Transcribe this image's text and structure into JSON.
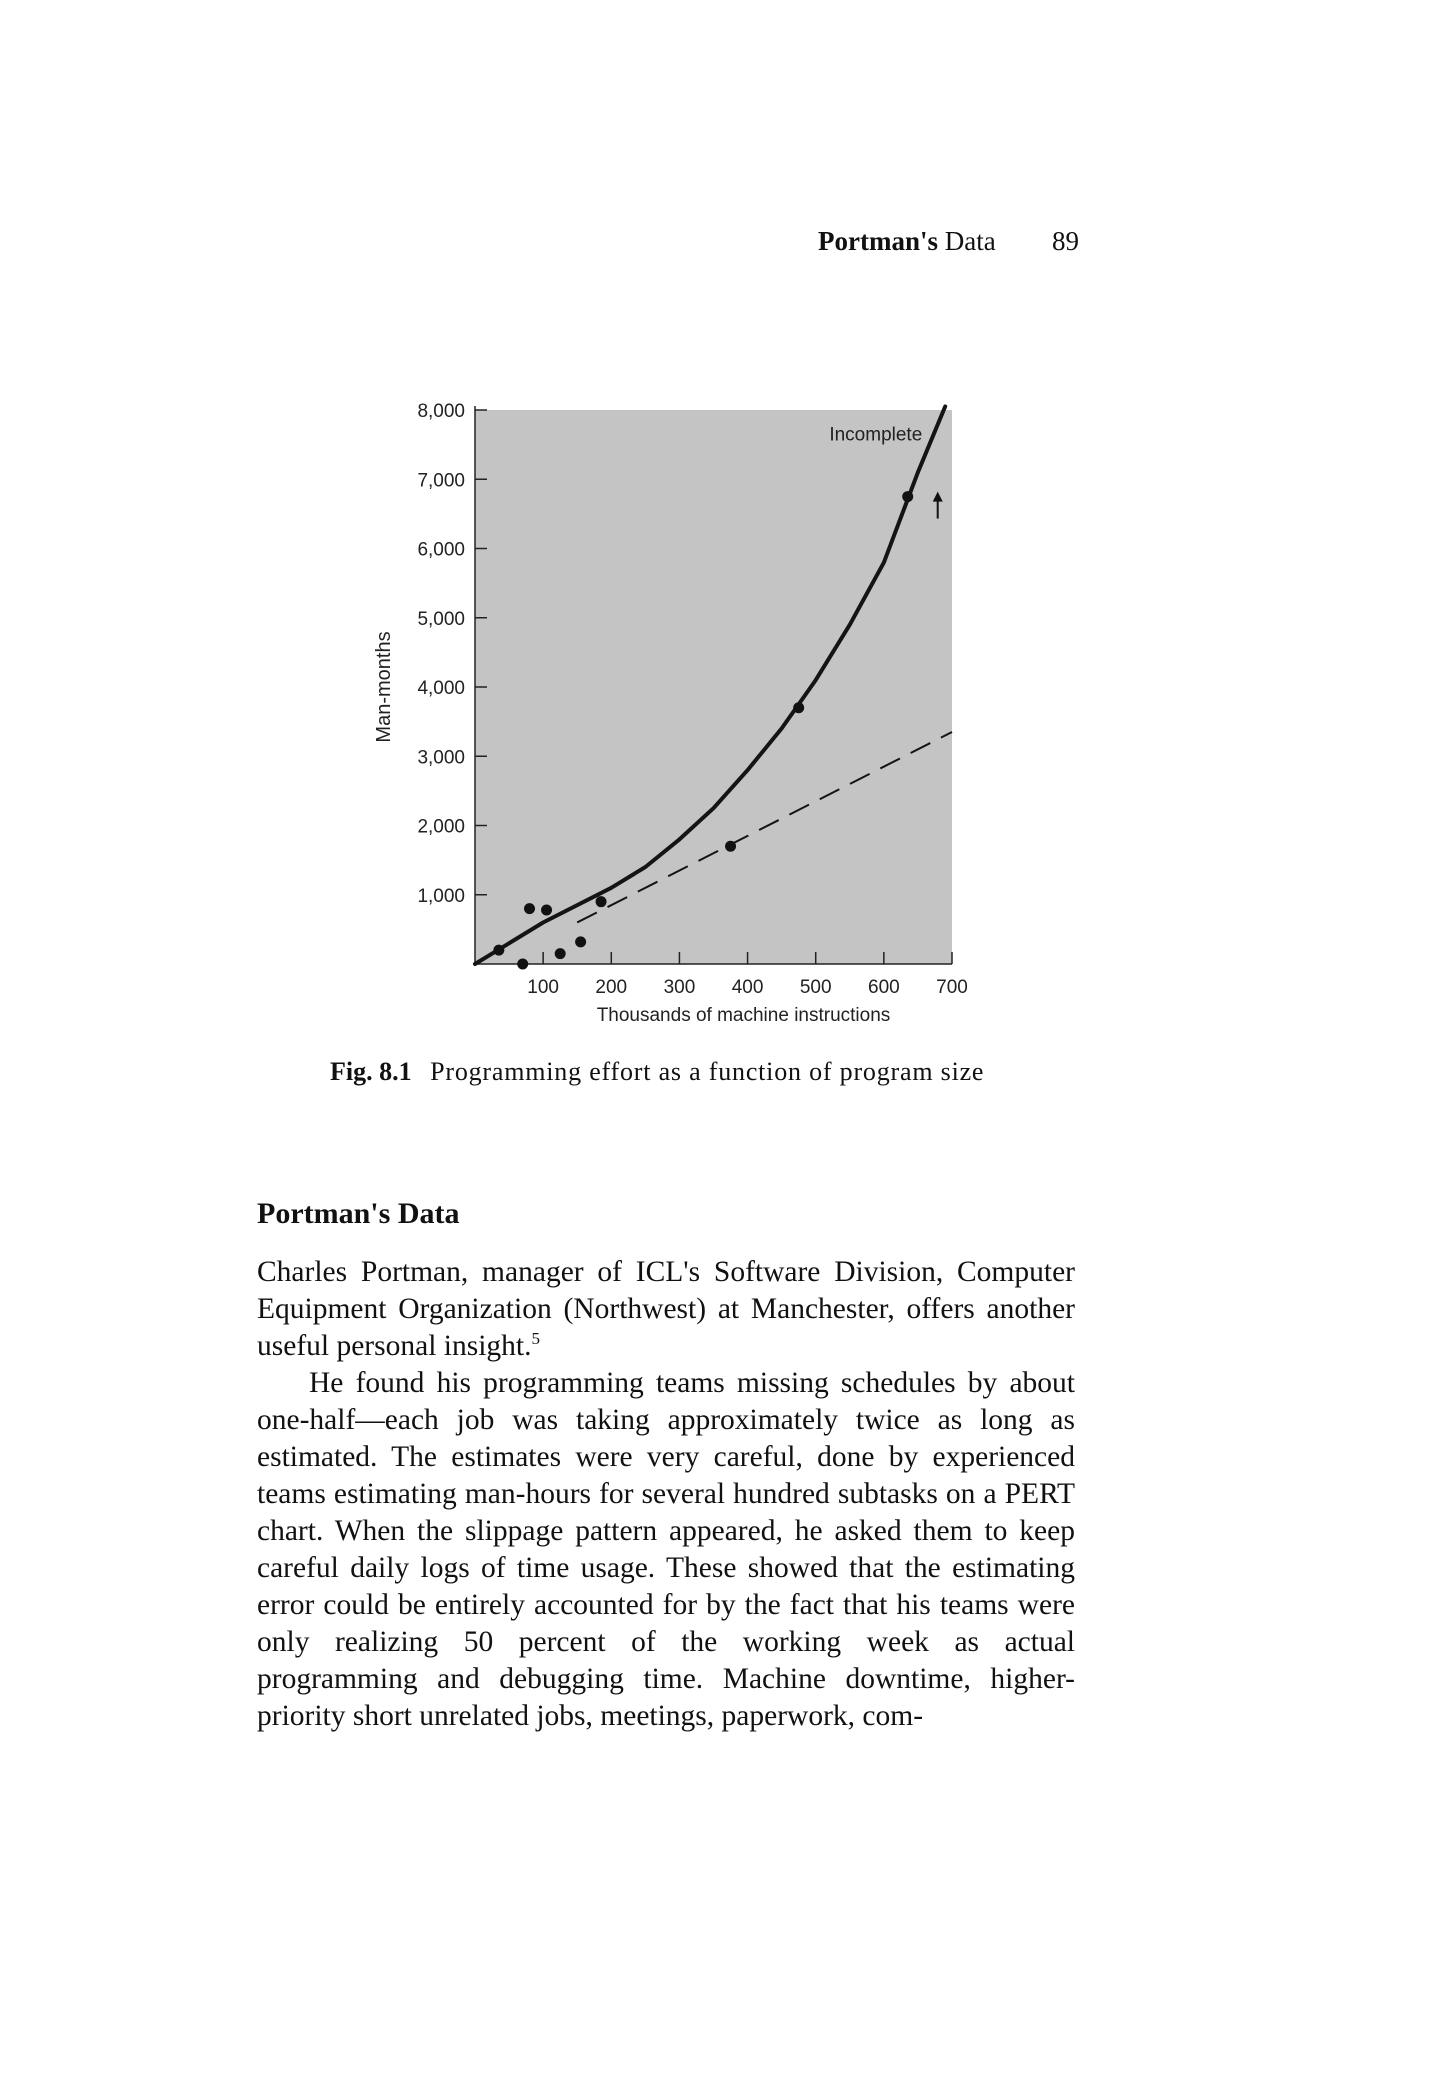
{
  "header": {
    "running_head_bold": "Portman's",
    "running_head_rest": "Data",
    "page_number": "89"
  },
  "figure": {
    "label": "Fig. 8.1",
    "caption": "Programming effort as a function of program size",
    "annotation": "Incomplete",
    "colors": {
      "plot_background": "#c4c4c4",
      "curve": "#141414",
      "points": "#111111"
    },
    "chart_data": {
      "type": "scatter",
      "title": "",
      "xlabel": "Thousands of machine instructions",
      "ylabel": "Man-months",
      "xlim": [
        0,
        700
      ],
      "ylim": [
        0,
        8000
      ],
      "x_ticks": [
        "100",
        "200",
        "300",
        "400",
        "500",
        "600",
        "700"
      ],
      "y_ticks": [
        "1,000",
        "2,000",
        "3,000",
        "4,000",
        "5,000",
        "6,000",
        "7,000",
        "8,000"
      ],
      "points": [
        {
          "x": 35,
          "y": 200
        },
        {
          "x": 70,
          "y": 0
        },
        {
          "x": 80,
          "y": 800
        },
        {
          "x": 105,
          "y": 780
        },
        {
          "x": 125,
          "y": 150
        },
        {
          "x": 155,
          "y": 320
        },
        {
          "x": 185,
          "y": 900
        },
        {
          "x": 375,
          "y": 1700
        },
        {
          "x": 475,
          "y": 3700
        },
        {
          "x": 635,
          "y": 6750
        }
      ],
      "trend_curve": [
        {
          "x": 0,
          "y": 0
        },
        {
          "x": 100,
          "y": 600
        },
        {
          "x": 200,
          "y": 1100
        },
        {
          "x": 250,
          "y": 1400
        },
        {
          "x": 300,
          "y": 1800
        },
        {
          "x": 350,
          "y": 2250
        },
        {
          "x": 400,
          "y": 2800
        },
        {
          "x": 450,
          "y": 3400
        },
        {
          "x": 500,
          "y": 4100
        },
        {
          "x": 550,
          "y": 4900
        },
        {
          "x": 600,
          "y": 5800
        },
        {
          "x": 650,
          "y": 7100
        },
        {
          "x": 690,
          "y": 8050
        }
      ],
      "linear_trend": [
        {
          "x": 150,
          "y": 600
        },
        {
          "x": 700,
          "y": 3350
        }
      ],
      "grid": false,
      "legend": "none"
    }
  },
  "section": {
    "heading": "Portman's Data",
    "para1": "Charles Portman, manager of ICL's Software Division, Computer Equipment Organization (Northwest) at Manchester, offers another useful personal insight.",
    "para1_footnote": "5",
    "para2": "He found his programming teams missing schedules by about one-half—each job was taking approximately twice as long as estimated. The estimates were very careful, done by experienced teams estimating man-hours for several hundred subtasks on a PERT chart. When the slippage pattern appeared, he asked them to keep careful daily logs of time usage. These showed that the estimating error could be entirely accounted for by the fact that his teams were only realizing 50 percent of the working week as actual programming and debugging time. Machine downtime, higher-priority short unrelated jobs, meetings, paperwork, com-"
  }
}
